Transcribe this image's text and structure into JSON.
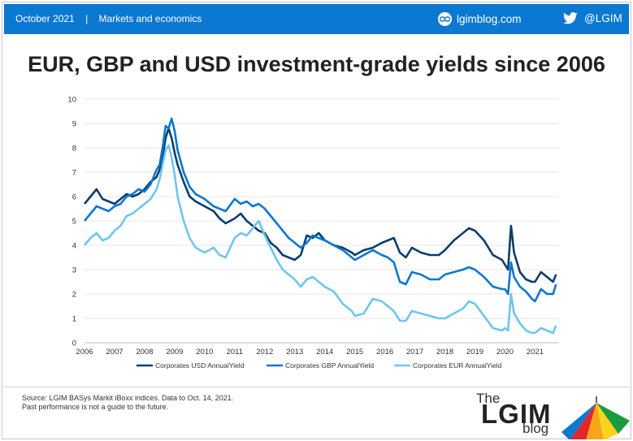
{
  "header": {
    "date": "October 2021",
    "separator": "|",
    "section": "Markets and economics",
    "site": "lgimblog.com",
    "twitter": "@LGIM",
    "bar_color": "#0b78d1"
  },
  "footer": {
    "source_line1": "Source: LGIM BASys Markit iBoxx indices. Data to Oct. 14, 2021.",
    "source_line2": "Past performance is not a guide to the future.",
    "logo_the": "The",
    "logo_lgim": "LGIM",
    "logo_blog": "blog"
  },
  "chart_data": {
    "type": "line",
    "title": "EUR, GBP and USD investment-grade yields since 2006",
    "xlabel": "",
    "ylabel": "",
    "xlim": [
      2006.0,
      2021.8
    ],
    "ylim": [
      0,
      10
    ],
    "y_ticks": [
      0,
      1,
      2,
      3,
      4,
      5,
      6,
      7,
      8,
      9,
      10
    ],
    "x_ticks": [
      2006,
      2007,
      2008,
      2009,
      2010,
      2011,
      2012,
      2013,
      2014,
      2015,
      2016,
      2017,
      2018,
      2019,
      2020,
      2021
    ],
    "grid": "horizontal",
    "legend_position": "bottom",
    "series": [
      {
        "name": "Corporates USD AnnualYield",
        "color": "#0b3d6e",
        "points": [
          [
            2006.0,
            5.7
          ],
          [
            2006.2,
            6.0
          ],
          [
            2006.4,
            6.3
          ],
          [
            2006.6,
            5.9
          ],
          [
            2006.8,
            5.8
          ],
          [
            2007.0,
            5.7
          ],
          [
            2007.2,
            5.9
          ],
          [
            2007.4,
            6.1
          ],
          [
            2007.6,
            6.0
          ],
          [
            2007.8,
            6.1
          ],
          [
            2008.0,
            6.3
          ],
          [
            2008.2,
            6.6
          ],
          [
            2008.4,
            6.8
          ],
          [
            2008.5,
            7.1
          ],
          [
            2008.6,
            7.6
          ],
          [
            2008.7,
            8.4
          ],
          [
            2008.8,
            8.8
          ],
          [
            2008.9,
            8.4
          ],
          [
            2009.0,
            7.8
          ],
          [
            2009.1,
            7.3
          ],
          [
            2009.3,
            6.6
          ],
          [
            2009.5,
            6.0
          ],
          [
            2009.7,
            5.8
          ],
          [
            2010.0,
            5.6
          ],
          [
            2010.3,
            5.4
          ],
          [
            2010.5,
            5.1
          ],
          [
            2010.7,
            4.9
          ],
          [
            2011.0,
            5.1
          ],
          [
            2011.2,
            5.3
          ],
          [
            2011.4,
            5.0
          ],
          [
            2011.6,
            4.8
          ],
          [
            2011.8,
            4.6
          ],
          [
            2012.0,
            4.5
          ],
          [
            2012.2,
            4.1
          ],
          [
            2012.4,
            3.9
          ],
          [
            2012.6,
            3.6
          ],
          [
            2012.8,
            3.5
          ],
          [
            2013.0,
            3.4
          ],
          [
            2013.2,
            3.6
          ],
          [
            2013.4,
            4.4
          ],
          [
            2013.6,
            4.3
          ],
          [
            2013.8,
            4.5
          ],
          [
            2014.0,
            4.2
          ],
          [
            2014.3,
            4.0
          ],
          [
            2014.6,
            3.9
          ],
          [
            2014.9,
            3.7
          ],
          [
            2015.0,
            3.6
          ],
          [
            2015.3,
            3.8
          ],
          [
            2015.6,
            3.9
          ],
          [
            2015.9,
            4.1
          ],
          [
            2016.1,
            4.2
          ],
          [
            2016.3,
            4.3
          ],
          [
            2016.5,
            3.7
          ],
          [
            2016.7,
            3.5
          ],
          [
            2016.9,
            3.9
          ],
          [
            2017.2,
            3.7
          ],
          [
            2017.5,
            3.6
          ],
          [
            2017.8,
            3.6
          ],
          [
            2018.0,
            3.8
          ],
          [
            2018.3,
            4.2
          ],
          [
            2018.6,
            4.5
          ],
          [
            2018.8,
            4.7
          ],
          [
            2019.0,
            4.6
          ],
          [
            2019.3,
            4.2
          ],
          [
            2019.6,
            3.6
          ],
          [
            2019.9,
            3.4
          ],
          [
            2020.0,
            3.2
          ],
          [
            2020.1,
            3.0
          ],
          [
            2020.2,
            4.8
          ],
          [
            2020.3,
            3.7
          ],
          [
            2020.5,
            2.9
          ],
          [
            2020.7,
            2.6
          ],
          [
            2020.9,
            2.5
          ],
          [
            2021.0,
            2.5
          ],
          [
            2021.2,
            2.9
          ],
          [
            2021.4,
            2.7
          ],
          [
            2021.6,
            2.5
          ],
          [
            2021.7,
            2.8
          ]
        ]
      },
      {
        "name": "Corporates GBP AnnualYield",
        "color": "#0b78d1",
        "points": [
          [
            2006.0,
            5.0
          ],
          [
            2006.2,
            5.3
          ],
          [
            2006.4,
            5.6
          ],
          [
            2006.6,
            5.5
          ],
          [
            2006.8,
            5.4
          ],
          [
            2007.0,
            5.6
          ],
          [
            2007.2,
            5.7
          ],
          [
            2007.4,
            6.0
          ],
          [
            2007.6,
            6.1
          ],
          [
            2007.8,
            6.3
          ],
          [
            2008.0,
            6.2
          ],
          [
            2008.2,
            6.5
          ],
          [
            2008.4,
            7.1
          ],
          [
            2008.5,
            7.3
          ],
          [
            2008.6,
            8.0
          ],
          [
            2008.7,
            8.9
          ],
          [
            2008.8,
            8.8
          ],
          [
            2008.9,
            9.2
          ],
          [
            2009.0,
            8.7
          ],
          [
            2009.1,
            7.9
          ],
          [
            2009.3,
            7.0
          ],
          [
            2009.5,
            6.4
          ],
          [
            2009.7,
            6.1
          ],
          [
            2010.0,
            5.9
          ],
          [
            2010.3,
            5.6
          ],
          [
            2010.5,
            5.5
          ],
          [
            2010.7,
            5.4
          ],
          [
            2011.0,
            5.9
          ],
          [
            2011.2,
            5.7
          ],
          [
            2011.4,
            5.8
          ],
          [
            2011.6,
            5.6
          ],
          [
            2011.8,
            5.7
          ],
          [
            2012.0,
            5.5
          ],
          [
            2012.2,
            5.2
          ],
          [
            2012.4,
            4.9
          ],
          [
            2012.6,
            4.6
          ],
          [
            2012.8,
            4.3
          ],
          [
            2013.0,
            4.1
          ],
          [
            2013.2,
            3.9
          ],
          [
            2013.4,
            4.1
          ],
          [
            2013.6,
            4.4
          ],
          [
            2013.8,
            4.3
          ],
          [
            2014.0,
            4.2
          ],
          [
            2014.3,
            4.0
          ],
          [
            2014.6,
            3.8
          ],
          [
            2014.9,
            3.5
          ],
          [
            2015.0,
            3.4
          ],
          [
            2015.3,
            3.6
          ],
          [
            2015.6,
            3.8
          ],
          [
            2015.9,
            3.6
          ],
          [
            2016.1,
            3.5
          ],
          [
            2016.3,
            3.3
          ],
          [
            2016.5,
            2.5
          ],
          [
            2016.7,
            2.4
          ],
          [
            2016.9,
            2.9
          ],
          [
            2017.2,
            2.8
          ],
          [
            2017.5,
            2.6
          ],
          [
            2017.8,
            2.6
          ],
          [
            2018.0,
            2.8
          ],
          [
            2018.3,
            2.9
          ],
          [
            2018.6,
            3.0
          ],
          [
            2018.8,
            3.1
          ],
          [
            2019.0,
            3.0
          ],
          [
            2019.3,
            2.7
          ],
          [
            2019.6,
            2.3
          ],
          [
            2019.9,
            2.2
          ],
          [
            2020.0,
            2.2
          ],
          [
            2020.1,
            2.0
          ],
          [
            2020.2,
            3.3
          ],
          [
            2020.3,
            2.7
          ],
          [
            2020.5,
            2.3
          ],
          [
            2020.7,
            2.1
          ],
          [
            2020.9,
            1.8
          ],
          [
            2021.0,
            1.7
          ],
          [
            2021.2,
            2.2
          ],
          [
            2021.4,
            2.0
          ],
          [
            2021.6,
            2.0
          ],
          [
            2021.7,
            2.4
          ]
        ]
      },
      {
        "name": "Corporates EUR AnnualYield",
        "color": "#6ec6f0",
        "points": [
          [
            2006.0,
            4.0
          ],
          [
            2006.2,
            4.3
          ],
          [
            2006.4,
            4.5
          ],
          [
            2006.6,
            4.2
          ],
          [
            2006.8,
            4.3
          ],
          [
            2007.0,
            4.6
          ],
          [
            2007.2,
            4.8
          ],
          [
            2007.4,
            5.2
          ],
          [
            2007.6,
            5.3
          ],
          [
            2007.8,
            5.5
          ],
          [
            2008.0,
            5.7
          ],
          [
            2008.2,
            5.9
          ],
          [
            2008.4,
            6.3
          ],
          [
            2008.5,
            6.7
          ],
          [
            2008.6,
            7.3
          ],
          [
            2008.7,
            7.9
          ],
          [
            2008.8,
            8.1
          ],
          [
            2008.9,
            7.6
          ],
          [
            2009.0,
            6.9
          ],
          [
            2009.1,
            6.0
          ],
          [
            2009.3,
            5.0
          ],
          [
            2009.5,
            4.3
          ],
          [
            2009.7,
            3.9
          ],
          [
            2010.0,
            3.7
          ],
          [
            2010.3,
            3.9
          ],
          [
            2010.5,
            3.6
          ],
          [
            2010.7,
            3.5
          ],
          [
            2011.0,
            4.3
          ],
          [
            2011.2,
            4.5
          ],
          [
            2011.4,
            4.4
          ],
          [
            2011.6,
            4.7
          ],
          [
            2011.8,
            5.0
          ],
          [
            2012.0,
            4.4
          ],
          [
            2012.2,
            3.9
          ],
          [
            2012.4,
            3.4
          ],
          [
            2012.6,
            3.0
          ],
          [
            2012.8,
            2.8
          ],
          [
            2013.0,
            2.6
          ],
          [
            2013.2,
            2.3
          ],
          [
            2013.4,
            2.6
          ],
          [
            2013.6,
            2.7
          ],
          [
            2013.8,
            2.5
          ],
          [
            2014.0,
            2.3
          ],
          [
            2014.3,
            2.1
          ],
          [
            2014.6,
            1.6
          ],
          [
            2014.9,
            1.3
          ],
          [
            2015.0,
            1.1
          ],
          [
            2015.3,
            1.2
          ],
          [
            2015.6,
            1.8
          ],
          [
            2015.9,
            1.7
          ],
          [
            2016.1,
            1.5
          ],
          [
            2016.3,
            1.3
          ],
          [
            2016.5,
            0.9
          ],
          [
            2016.7,
            0.9
          ],
          [
            2016.9,
            1.3
          ],
          [
            2017.2,
            1.2
          ],
          [
            2017.5,
            1.1
          ],
          [
            2017.8,
            1.0
          ],
          [
            2018.0,
            1.0
          ],
          [
            2018.3,
            1.2
          ],
          [
            2018.6,
            1.4
          ],
          [
            2018.8,
            1.7
          ],
          [
            2019.0,
            1.6
          ],
          [
            2019.3,
            1.1
          ],
          [
            2019.6,
            0.6
          ],
          [
            2019.9,
            0.5
          ],
          [
            2020.0,
            0.6
          ],
          [
            2020.1,
            0.5
          ],
          [
            2020.2,
            2.0
          ],
          [
            2020.3,
            1.2
          ],
          [
            2020.5,
            0.8
          ],
          [
            2020.7,
            0.5
          ],
          [
            2020.9,
            0.4
          ],
          [
            2021.0,
            0.4
          ],
          [
            2021.2,
            0.6
          ],
          [
            2021.4,
            0.5
          ],
          [
            2021.6,
            0.4
          ],
          [
            2021.7,
            0.7
          ]
        ]
      }
    ]
  }
}
